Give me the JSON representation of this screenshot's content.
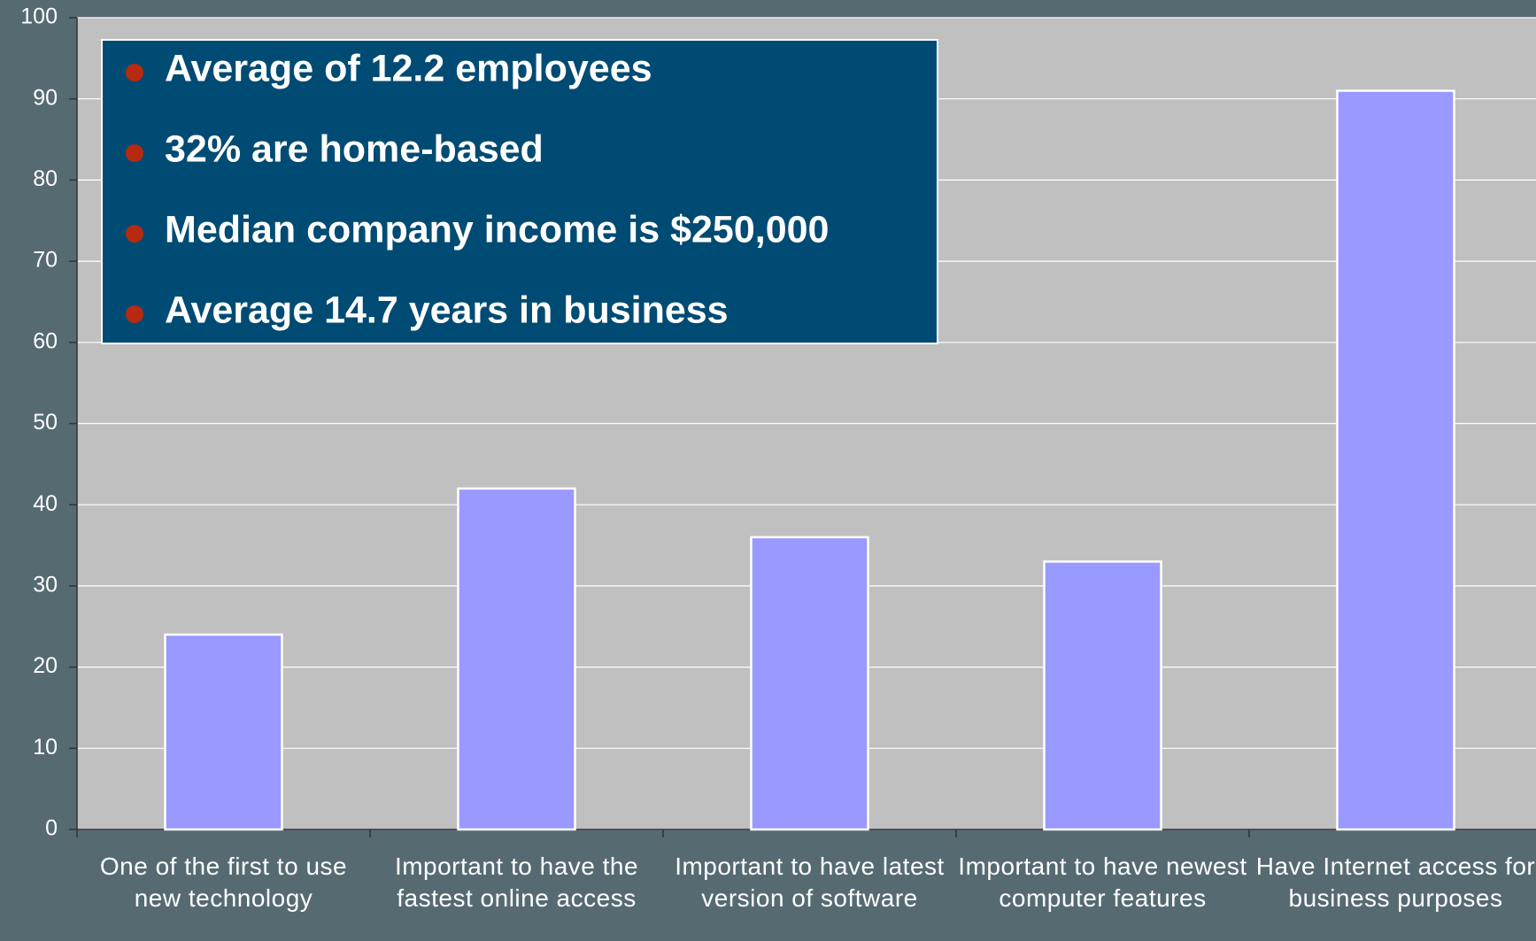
{
  "chart_data": {
    "type": "bar",
    "categories": [
      "One of the first to use new technology",
      "Important to have the fastest online access",
      "Important to have latest version of software",
      "Important to have newest computer features",
      "Have Internet access for business purposes"
    ],
    "values": [
      24,
      42,
      36,
      33,
      91
    ],
    "color": "#9999ff",
    "ylim": [
      0,
      100
    ],
    "yticks": [
      0,
      10,
      20,
      30,
      40,
      50,
      60,
      70,
      80,
      90,
      100
    ],
    "grid": true,
    "annotations": [
      "Average of 12.2 employees",
      "32% are home-based",
      "Median company income is $250,000",
      "Average 14.7 years in business"
    ]
  }
}
